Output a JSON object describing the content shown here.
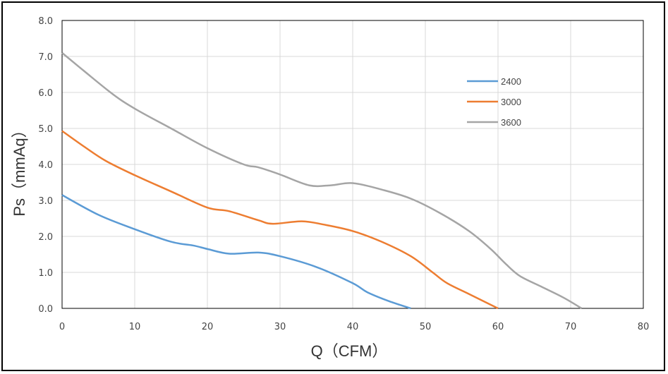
{
  "chart_data": {
    "type": "line",
    "title": "",
    "xlabel": "Q（CFM）",
    "ylabel": "Ps（mmAq）",
    "xlim": [
      0,
      80
    ],
    "ylim": [
      0,
      8
    ],
    "x_ticks": [
      "0",
      "10",
      "20",
      "30",
      "40",
      "50",
      "60",
      "70",
      "80"
    ],
    "y_ticks": [
      "0.0",
      "1.0",
      "2.0",
      "3.0",
      "4.0",
      "5.0",
      "6.0",
      "7.0",
      "8.0"
    ],
    "grid": true,
    "legend_position": "right",
    "series": [
      {
        "name": "2400",
        "color": "#5B9BD5",
        "points": [
          [
            0,
            3.15
          ],
          [
            5,
            2.6
          ],
          [
            10,
            2.2
          ],
          [
            15,
            1.85
          ],
          [
            18,
            1.75
          ],
          [
            20,
            1.65
          ],
          [
            23,
            1.52
          ],
          [
            27,
            1.55
          ],
          [
            30,
            1.45
          ],
          [
            35,
            1.15
          ],
          [
            40,
            0.7
          ],
          [
            42,
            0.45
          ],
          [
            45,
            0.2
          ],
          [
            48,
            0.0
          ]
        ]
      },
      {
        "name": "3000",
        "color": "#ED7D31",
        "points": [
          [
            0,
            4.93
          ],
          [
            3,
            4.5
          ],
          [
            6,
            4.1
          ],
          [
            10,
            3.7
          ],
          [
            15,
            3.25
          ],
          [
            20,
            2.8
          ],
          [
            23,
            2.7
          ],
          [
            27,
            2.45
          ],
          [
            29,
            2.35
          ],
          [
            33,
            2.42
          ],
          [
            36,
            2.33
          ],
          [
            40,
            2.15
          ],
          [
            44,
            1.85
          ],
          [
            48,
            1.45
          ],
          [
            51,
            1.0
          ],
          [
            53,
            0.7
          ],
          [
            56,
            0.4
          ],
          [
            60,
            0.0
          ]
        ]
      },
      {
        "name": "3600",
        "color": "#A5A5A5",
        "points": [
          [
            0,
            7.1
          ],
          [
            3,
            6.6
          ],
          [
            7,
            5.95
          ],
          [
            10,
            5.55
          ],
          [
            15,
            5.0
          ],
          [
            20,
            4.45
          ],
          [
            25,
            4.0
          ],
          [
            27,
            3.92
          ],
          [
            30,
            3.72
          ],
          [
            34,
            3.42
          ],
          [
            37,
            3.42
          ],
          [
            40,
            3.48
          ],
          [
            44,
            3.3
          ],
          [
            48,
            3.05
          ],
          [
            52,
            2.65
          ],
          [
            56,
            2.15
          ],
          [
            59,
            1.65
          ],
          [
            61,
            1.25
          ],
          [
            63,
            0.9
          ],
          [
            66,
            0.6
          ],
          [
            69,
            0.3
          ],
          [
            71.5,
            0.0
          ]
        ]
      }
    ]
  }
}
